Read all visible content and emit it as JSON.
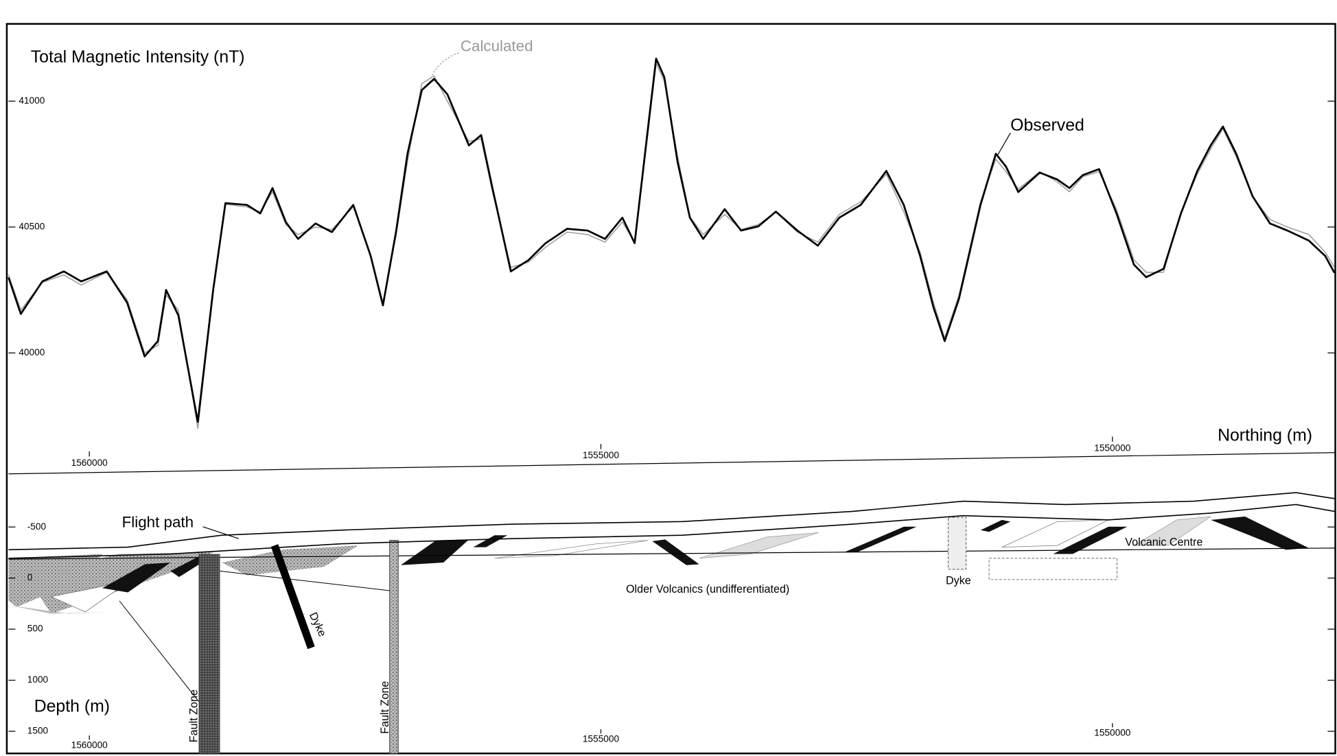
{
  "chart_data": [
    {
      "type": "line",
      "title": "Total Magnetic Intensity (nT)",
      "x_label": "Northing (m)",
      "x": [
        1560790,
        1560670,
        1560460,
        1560250,
        1560080,
        1559830,
        1559630,
        1559460,
        1559330,
        1559250,
        1559130,
        1558940,
        1558790,
        1558670,
        1558460,
        1558330,
        1558210,
        1558080,
        1557960,
        1557790,
        1557630,
        1557420,
        1557250,
        1557130,
        1557000,
        1556890,
        1556750,
        1556630,
        1556500,
        1556290,
        1556170,
        1556060,
        1555880,
        1555710,
        1555540,
        1555330,
        1555130,
        1554960,
        1554790,
        1554670,
        1554540,
        1554460,
        1554380,
        1554250,
        1554130,
        1554000,
        1553790,
        1553630,
        1553460,
        1553290,
        1553080,
        1552880,
        1552670,
        1552460,
        1552210,
        1552040,
        1551880,
        1551750,
        1551640,
        1551500,
        1551290,
        1551140,
        1551040,
        1550920,
        1550710,
        1550540,
        1550420,
        1550290,
        1550130,
        1549960,
        1549790,
        1549670,
        1549500,
        1549330,
        1549170,
        1549040,
        1548920,
        1548790,
        1548630,
        1548460,
        1548290,
        1548080,
        1547920,
        1547830
      ],
      "series": [
        {
          "name": "Observed",
          "color": "#000000",
          "values": [
            40300,
            40155,
            40284,
            40324,
            40284,
            40324,
            40199,
            39986,
            40047,
            40250,
            40149,
            39726,
            40250,
            40595,
            40588,
            40554,
            40655,
            40520,
            40453,
            40514,
            40480,
            40588,
            40385,
            40189,
            40486,
            40791,
            41044,
            41088,
            41027,
            40824,
            40865,
            40655,
            40324,
            40368,
            40436,
            40493,
            40486,
            40453,
            40537,
            40436,
            40892,
            41169,
            41095,
            40757,
            40537,
            40453,
            40571,
            40486,
            40503,
            40561,
            40486,
            40426,
            40537,
            40588,
            40723,
            40588,
            40385,
            40182,
            40047,
            40216,
            40588,
            40791,
            40740,
            40639,
            40716,
            40689,
            40655,
            40706,
            40730,
            40554,
            40351,
            40301,
            40334,
            40554,
            40723,
            40824,
            40899,
            40791,
            40622,
            40514,
            40486,
            40446,
            40385,
            40318
          ]
        },
        {
          "name": "Calculated",
          "color": "#9a9a9a",
          "values": [
            40310,
            40170,
            40280,
            40310,
            40270,
            40320,
            40210,
            40000,
            40030,
            40230,
            40170,
            39700,
            40240,
            40590,
            40580,
            40560,
            40640,
            40510,
            40470,
            40500,
            40490,
            40580,
            40390,
            40200,
            40470,
            40760,
            41070,
            41100,
            41000,
            40840,
            40850,
            40640,
            40340,
            40360,
            40420,
            40480,
            40470,
            40440,
            40520,
            40440,
            40870,
            41150,
            41080,
            40780,
            40540,
            40470,
            40550,
            40490,
            40510,
            40560,
            40480,
            40440,
            40550,
            40600,
            40710,
            40560,
            40400,
            40200,
            40060,
            40230,
            40600,
            40770,
            40720,
            40650,
            40720,
            40680,
            40640,
            40700,
            40720,
            40570,
            40370,
            40320,
            40320,
            40560,
            40710,
            40810,
            40890,
            40780,
            40620,
            40530,
            40500,
            40470,
            40400,
            40340
          ]
        }
      ],
      "xlim": [
        1560790,
        1547830
      ],
      "ylim": [
        39540,
        41300
      ],
      "xticks": [
        1560000,
        1555000,
        1550000
      ],
      "yticks": [
        40000,
        40500,
        41000
      ]
    },
    {
      "type": "section",
      "y_label": "Depth (m)",
      "xlim": [
        1560790,
        1547830
      ],
      "ylim": [
        -1020,
        1725
      ],
      "xticks": [
        1560000,
        1555000,
        1550000
      ],
      "yticks": [
        -500,
        0,
        500,
        1000,
        1500
      ],
      "annotations": [
        "Flight path",
        "Dyke",
        "Fault Zone",
        "Fault Zone",
        "Older Volcanics (undifferentiated)",
        "Dyke",
        "Volcanic Centre"
      ]
    }
  ]
}
